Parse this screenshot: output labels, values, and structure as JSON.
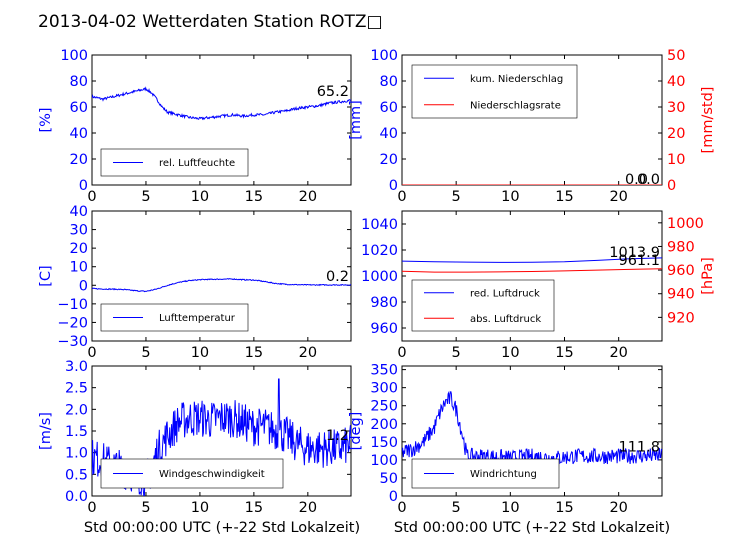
{
  "title": "2013-04-02 Wetterdaten Station ROTZ□",
  "xlabel": "Std 00:00:00 UTC (+-22 Std Lokalzeit)",
  "colors": {
    "blue": "#0000ff",
    "red": "#ff0000",
    "black": "#000000"
  },
  "chart_data": [
    {
      "type": "line",
      "ylabel": "[%]",
      "xlim": [
        0,
        24
      ],
      "xticks": [
        0,
        5,
        10,
        15,
        20
      ],
      "ylim": [
        0,
        100
      ],
      "yticks": [
        0,
        20,
        40,
        60,
        80,
        100
      ],
      "series": [
        {
          "name": "rel. Luftfeuchte",
          "color": "#0000ff",
          "x": [
            0,
            1,
            2,
            3,
            4,
            4.5,
            5,
            5.5,
            6,
            6.5,
            7,
            7.5,
            8,
            9,
            10,
            11,
            12,
            13,
            14,
            15,
            16,
            17,
            18,
            19,
            20,
            21,
            22,
            23,
            24
          ],
          "y": [
            68,
            66,
            68,
            70,
            72,
            73,
            74,
            71,
            66,
            60,
            56,
            55,
            54,
            52,
            51,
            52,
            53,
            54,
            53,
            54,
            54,
            56,
            57,
            59,
            60,
            61,
            63,
            64,
            65.2
          ],
          "noise": 1
        }
      ],
      "annotation": "65.2",
      "legend_loc": "lower left"
    },
    {
      "type": "line",
      "ylabel": "[mm]",
      "ylabel2": "[mm/std]",
      "xlim": [
        0,
        24
      ],
      "xticks": [
        0,
        5,
        10,
        15,
        20
      ],
      "ylim": [
        0,
        100
      ],
      "yticks": [
        0,
        20,
        40,
        60,
        80,
        100
      ],
      "ylim2": [
        0,
        50
      ],
      "yticks2": [
        0,
        10,
        20,
        30,
        40,
        50
      ],
      "series": [
        {
          "name": "kum. Niederschlag",
          "color": "#0000ff",
          "x": [
            0,
            24
          ],
          "y": [
            0,
            0
          ]
        },
        {
          "name": "Niederschlagsrate",
          "color": "#ff0000",
          "axis": "right",
          "x": [
            0,
            24
          ],
          "y": [
            0,
            0
          ]
        }
      ],
      "annotations": [
        "0.0",
        "0.0"
      ],
      "legend_loc": "upper left"
    },
    {
      "type": "line",
      "ylabel": "[C]",
      "xlim": [
        0,
        24
      ],
      "xticks": [
        0,
        5,
        10,
        15,
        20
      ],
      "ylim": [
        -30,
        40
      ],
      "yticks": [
        -30,
        -20,
        -10,
        0,
        10,
        20,
        30,
        40
      ],
      "series": [
        {
          "name": "Lufttemperatur",
          "color": "#0000ff",
          "x": [
            0,
            1,
            2,
            3,
            4,
            5,
            6,
            7,
            8,
            9,
            10,
            11,
            12,
            13,
            14,
            15,
            16,
            17,
            18,
            19,
            20,
            21,
            22,
            23,
            24
          ],
          "y": [
            -1.8,
            -2,
            -2.1,
            -2.3,
            -2.9,
            -3.3,
            -2,
            0,
            1.5,
            2.5,
            3,
            3.2,
            3.3,
            3.4,
            3,
            2.8,
            2,
            1,
            0.5,
            0.3,
            0.2,
            0.2,
            0.2,
            0.2,
            0.2
          ],
          "noise": 0.25
        }
      ],
      "annotation": "0.2",
      "legend_loc": "lower left"
    },
    {
      "type": "line",
      "ylabel2": "[hPa]",
      "xlim": [
        0,
        24
      ],
      "xticks": [
        0,
        5,
        10,
        15,
        20
      ],
      "ylim": [
        950,
        1050
      ],
      "yticks": [
        960,
        980,
        1000,
        1020,
        1040
      ],
      "ylim2": [
        900,
        1010
      ],
      "yticks2": [
        920,
        940,
        960,
        980,
        1000
      ],
      "series": [
        {
          "name": "red. Luftdruck",
          "color": "#0000ff",
          "x": [
            0,
            3,
            6,
            9,
            12,
            15,
            18,
            21,
            24
          ],
          "y": [
            1011.5,
            1011,
            1010.7,
            1010.5,
            1010.6,
            1011,
            1012,
            1013.2,
            1013.9
          ]
        },
        {
          "name": "abs. Luftdruck",
          "color": "#ff0000",
          "axis": "right",
          "x": [
            0,
            3,
            6,
            9,
            12,
            15,
            18,
            21,
            24
          ],
          "y": [
            959,
            958.3,
            958.3,
            958.5,
            958.8,
            959.3,
            960,
            960.6,
            961.1
          ]
        }
      ],
      "annotations": [
        "1013.9",
        "961.1"
      ],
      "legend_loc": "lower left"
    },
    {
      "type": "line",
      "ylabel": "[m/s]",
      "xlim": [
        0,
        24
      ],
      "xticks": [
        0,
        5,
        10,
        15,
        20
      ],
      "ylim": [
        0,
        3.0
      ],
      "yticks": [
        0.0,
        0.5,
        1.0,
        1.5,
        2.0,
        2.5,
        3.0
      ],
      "series": [
        {
          "name": "Windgeschwindigkeit",
          "color": "#0000ff",
          "x": [
            0,
            1,
            2,
            3,
            4,
            5,
            5.5,
            6,
            7,
            8,
            9,
            10,
            11,
            12,
            13,
            14,
            15,
            16,
            17,
            18,
            19,
            20,
            21,
            22,
            23,
            24
          ],
          "y": [
            0.9,
            0.8,
            0.7,
            0.6,
            0.5,
            0.4,
            0.6,
            1.0,
            1.4,
            1.7,
            1.8,
            1.8,
            1.75,
            1.8,
            1.8,
            1.7,
            1.6,
            1.6,
            1.5,
            1.4,
            1.2,
            1.1,
            1.1,
            1.1,
            1.1,
            1.2
          ],
          "noise": 0.45,
          "max": 2.7
        }
      ],
      "annotation": "1.2",
      "legend_loc": "lower left"
    },
    {
      "type": "line",
      "ylabel": "[deg]",
      "xlim": [
        0,
        24
      ],
      "xticks": [
        0,
        5,
        10,
        15,
        20
      ],
      "ylim": [
        0,
        360
      ],
      "yticks": [
        0,
        50,
        100,
        150,
        200,
        250,
        300,
        350
      ],
      "series": [
        {
          "name": "Windrichtung",
          "color": "#0000ff",
          "x": [
            0,
            1,
            2,
            3,
            3.5,
            4,
            4.5,
            5,
            5.5,
            6,
            7,
            8,
            10,
            12,
            14,
            16,
            18,
            20,
            22,
            24
          ],
          "y": [
            120,
            130,
            150,
            190,
            230,
            260,
            270,
            240,
            180,
            110,
            110,
            110,
            105,
            110,
            105,
            110,
            110,
            110,
            111,
            111.8
          ],
          "noise": 22
        }
      ],
      "annotation": "111.8",
      "legend_loc": "lower left"
    }
  ]
}
